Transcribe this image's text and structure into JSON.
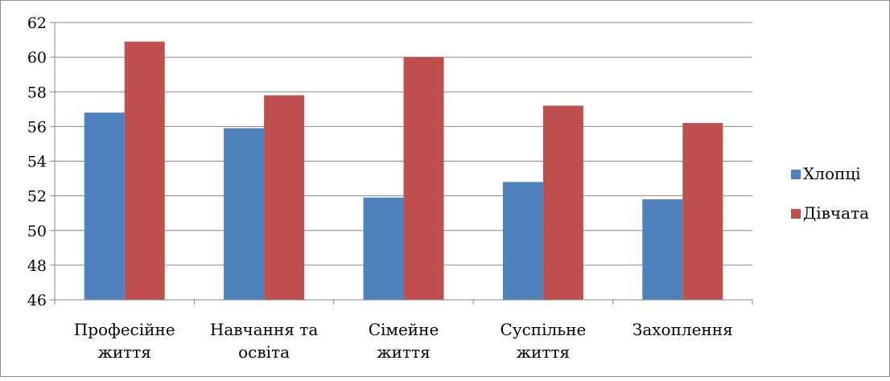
{
  "chart_data": {
    "type": "bar",
    "categories": [
      [
        "Професійне",
        "життя"
      ],
      [
        "Навчання та",
        "освіта"
      ],
      [
        "Сімейне",
        "життя"
      ],
      [
        "Суспільне",
        "життя"
      ],
      [
        "Захоплення"
      ]
    ],
    "series": [
      {
        "name": "Хлопці",
        "color": "#4f81bd",
        "values": [
          56.8,
          55.9,
          51.9,
          52.8,
          51.8
        ]
      },
      {
        "name": "Дівчата",
        "color": "#c0504d",
        "values": [
          60.9,
          57.8,
          60.0,
          57.2,
          56.2
        ]
      }
    ],
    "ylim": [
      46,
      62
    ],
    "ytick_step": 2,
    "grid": true,
    "legend_position": "right"
  }
}
